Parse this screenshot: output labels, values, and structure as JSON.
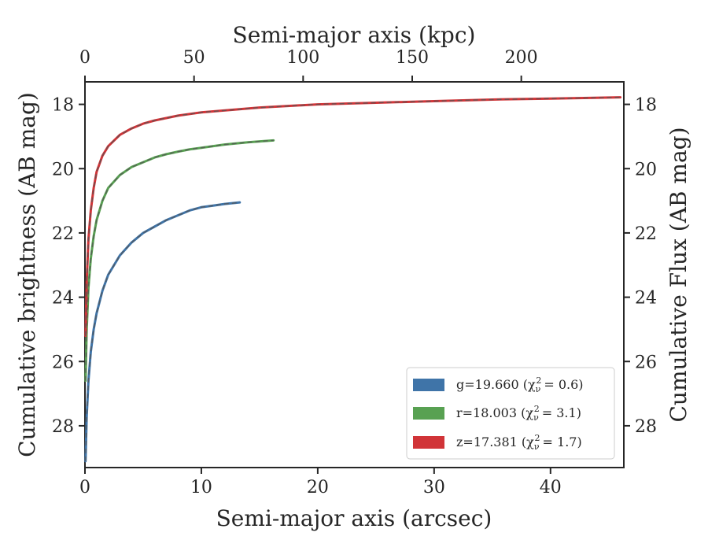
{
  "chart_data": {
    "type": "line",
    "xlabel": "Semi-major axis (arcsec)",
    "ylabel": "Cumulative brightness (AB mag)",
    "x2label": "Semi-major axis (kpc)",
    "y2label": "Cumulative Flux (AB mag)",
    "xlim": [
      0,
      46.3
    ],
    "ylim": [
      29.3,
      17.3
    ],
    "x2lim": [
      0,
      247
    ],
    "y_inverted": true,
    "grid": false,
    "legend_position": "lower-right",
    "xticks": [
      0,
      10,
      20,
      30,
      40
    ],
    "yticks": [
      18,
      20,
      22,
      24,
      26,
      28
    ],
    "x2ticks": [
      0,
      50,
      100,
      150,
      200
    ],
    "y2ticks": [
      18,
      20,
      22,
      24,
      26,
      28
    ],
    "series": [
      {
        "name": "g=19.660",
        "chi_label": "(χ",
        "chi_value": "= 0.6)",
        "color": "#3f74a8",
        "x": [
          0.05,
          0.15,
          0.3,
          0.5,
          0.75,
          1.0,
          1.5,
          2.0,
          3.0,
          4.0,
          5.0,
          6.0,
          7.0,
          8.0,
          9.0,
          10.0,
          11.0,
          12.0,
          13.3
        ],
        "y": [
          29.1,
          27.7,
          26.6,
          25.7,
          25.0,
          24.5,
          23.8,
          23.3,
          22.7,
          22.3,
          22.0,
          21.8,
          21.6,
          21.45,
          21.3,
          21.2,
          21.15,
          21.1,
          21.05
        ]
      },
      {
        "name": "r=18.003",
        "chi_label": "(χ",
        "chi_value": "= 3.1)",
        "color": "#58a152",
        "x": [
          0.05,
          0.15,
          0.3,
          0.5,
          0.75,
          1.0,
          1.5,
          2.0,
          3.0,
          4.0,
          5.0,
          6.0,
          7.0,
          8.0,
          9.0,
          10.0,
          12.0,
          14.0,
          16.2
        ],
        "y": [
          26.6,
          25.0,
          23.7,
          22.8,
          22.1,
          21.6,
          21.0,
          20.6,
          20.2,
          19.95,
          19.8,
          19.65,
          19.55,
          19.47,
          19.4,
          19.35,
          19.25,
          19.18,
          19.12
        ]
      },
      {
        "name": "z=17.381",
        "chi_label": "(χ",
        "chi_value": "= 1.7)",
        "color": "#d13438",
        "x": [
          0.05,
          0.15,
          0.3,
          0.5,
          0.75,
          1.0,
          1.5,
          2.0,
          3.0,
          4.0,
          5.0,
          6.0,
          8.0,
          10.0,
          15.0,
          20.0,
          25.0,
          30.0,
          35.0,
          40.0,
          46.0
        ],
        "y": [
          25.2,
          23.5,
          22.2,
          21.3,
          20.6,
          20.1,
          19.6,
          19.3,
          18.95,
          18.75,
          18.6,
          18.5,
          18.35,
          18.25,
          18.1,
          18.0,
          17.95,
          17.9,
          17.85,
          17.82,
          17.78
        ]
      }
    ]
  }
}
